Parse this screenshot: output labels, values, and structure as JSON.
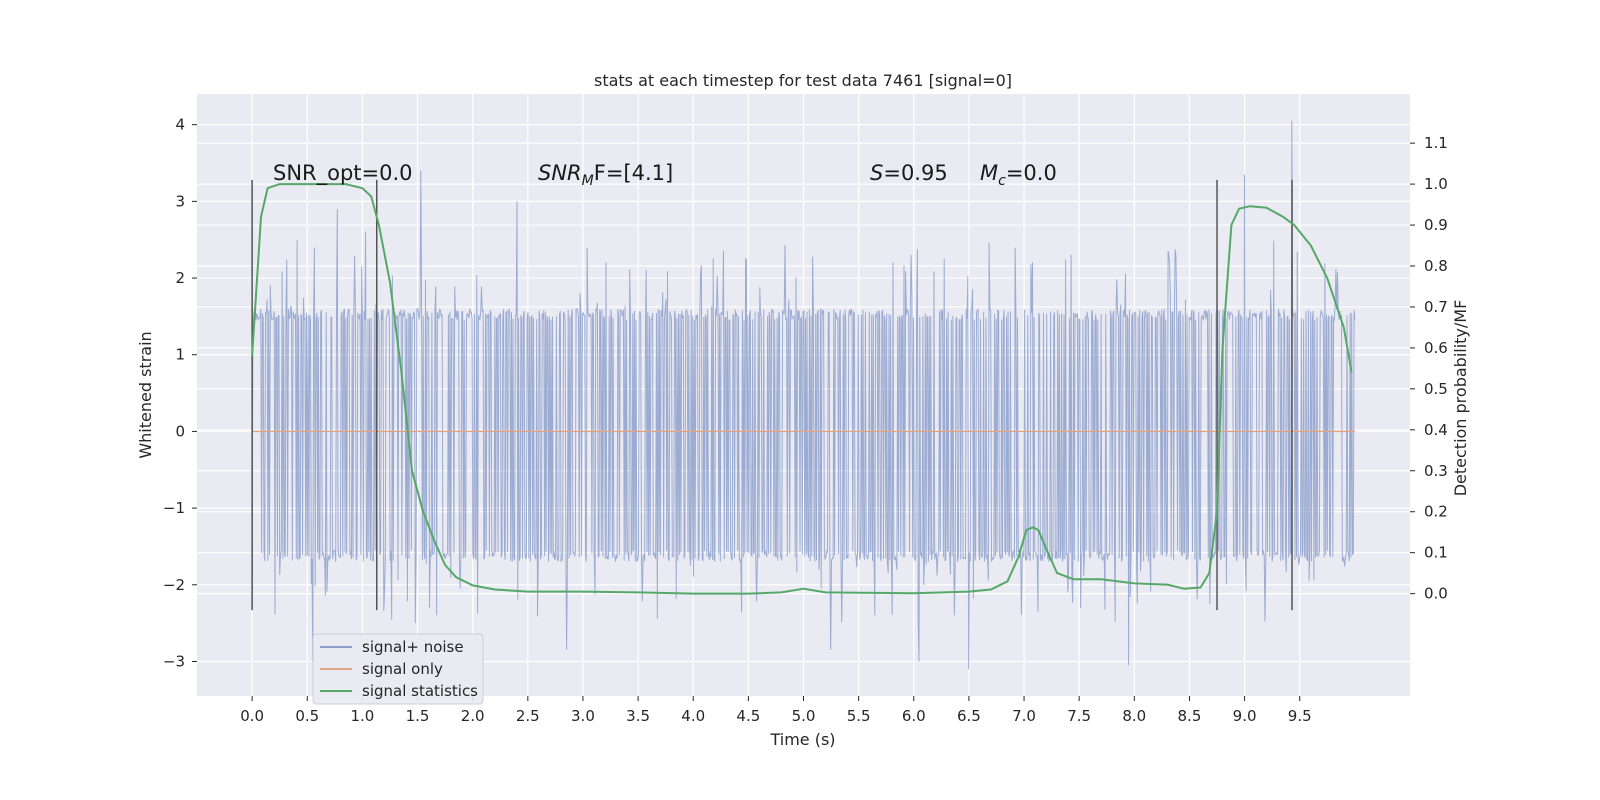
{
  "chart_data": {
    "type": "line",
    "title": "stats at each timestep for test data 7461 [signal=0]",
    "xlabel": "Time (s)",
    "ylabel": "Whitened strain",
    "ylabel_right": "Detection probability/MF",
    "xlim": [
      -0.5,
      10.5
    ],
    "ylim": [
      -3.45,
      4.4
    ],
    "ylim_right": [
      -0.25,
      1.22
    ],
    "x_ticks": [
      0.0,
      0.5,
      1.0,
      1.5,
      2.0,
      2.5,
      3.0,
      3.5,
      4.0,
      4.5,
      5.0,
      5.5,
      6.0,
      6.5,
      7.0,
      7.5,
      8.0,
      8.5,
      9.0,
      9.5
    ],
    "x_tick_labels": [
      "0.0",
      "0.5",
      "1.0",
      "1.5",
      "2.0",
      "2.5",
      "3.0",
      "3.5",
      "4.0",
      "4.5",
      "5.0",
      "5.5",
      "6.0",
      "6.5",
      "7.0",
      "7.5",
      "8.0",
      "8.5",
      "9.0",
      "9.5"
    ],
    "y_ticks": [
      -3,
      -2,
      -1,
      0,
      1,
      2,
      3,
      4
    ],
    "y_tick_labels": [
      "−3",
      "−2",
      "−1",
      "0",
      "1",
      "2",
      "3",
      "4"
    ],
    "y_right_ticks": [
      0.0,
      0.1,
      0.2,
      0.3,
      0.4,
      0.5,
      0.6,
      0.7,
      0.8,
      0.9,
      1.0,
      1.1
    ],
    "y_right_tick_labels": [
      "0.0",
      "0.1",
      "0.2",
      "0.3",
      "0.4",
      "0.5",
      "0.6",
      "0.7",
      "0.8",
      "0.9",
      "1.0",
      "1.1"
    ],
    "annotations": {
      "snr_opt": "SNR_opt=0.0",
      "snr_mf_label": "SNR",
      "snr_mf_sub": "M",
      "snr_mf_tail": "F=[4.1]",
      "s_label": "S",
      "s_value": "=0.95",
      "mc_label": "M",
      "mc_sub": "c",
      "mc_value": "=0.0"
    },
    "legend": {
      "position": "lower-left",
      "entries": [
        "signal+ noise",
        "signal only",
        "signal statistics"
      ]
    },
    "vertical_markers_x": [
      0.0,
      1.13,
      8.75,
      9.43
    ],
    "vertical_markers_range": [
      -2.33,
      3.28
    ],
    "series": [
      {
        "name": "signal+ noise",
        "color": "#8da0cb",
        "t_range": [
          0.0,
          10.0
        ],
        "band_typical": [
          -1.7,
          1.6
        ],
        "notable_spikes": [
          {
            "x": 0.77,
            "y": 2.9
          },
          {
            "x": 1.03,
            "y": 2.6
          },
          {
            "x": 1.53,
            "y": 3.4
          },
          {
            "x": 2.4,
            "y": 3.0
          },
          {
            "x": 2.85,
            "y": -2.85
          },
          {
            "x": 6.05,
            "y": -3.0
          },
          {
            "x": 6.5,
            "y": -3.1
          },
          {
            "x": 7.95,
            "y": -3.05
          },
          {
            "x": 9.0,
            "y": 3.35
          },
          {
            "x": 9.43,
            "y": 4.05
          },
          {
            "x": 0.55,
            "y": -3.0
          },
          {
            "x": 5.25,
            "y": -2.85
          }
        ]
      },
      {
        "name": "signal only",
        "color": "#e1a585",
        "x": [
          0.0,
          10.0
        ],
        "y": [
          0.0,
          0.0
        ]
      },
      {
        "name": "signal statistics",
        "color": "#55a868",
        "axis": "right",
        "x": [
          0.0,
          0.08,
          0.14,
          0.25,
          0.4,
          0.6,
          0.85,
          1.0,
          1.08,
          1.15,
          1.25,
          1.35,
          1.45,
          1.55,
          1.65,
          1.75,
          1.85,
          2.0,
          2.2,
          2.5,
          3.0,
          3.5,
          4.0,
          4.5,
          4.8,
          5.0,
          5.2,
          5.5,
          6.0,
          6.5,
          6.7,
          6.85,
          6.95,
          7.02,
          7.08,
          7.13,
          7.2,
          7.3,
          7.45,
          7.7,
          8.0,
          8.3,
          8.45,
          8.6,
          8.68,
          8.75,
          8.8,
          8.88,
          8.95,
          9.05,
          9.2,
          9.35,
          9.45,
          9.6,
          9.75,
          9.9,
          9.97
        ],
        "y": [
          0.58,
          0.92,
          0.99,
          1.0,
          1.0,
          1.0,
          1.0,
          0.99,
          0.97,
          0.9,
          0.76,
          0.55,
          0.3,
          0.2,
          0.13,
          0.07,
          0.04,
          0.02,
          0.01,
          0.005,
          0.005,
          0.003,
          0.0,
          0.0,
          0.003,
          0.012,
          0.003,
          0.002,
          0.001,
          0.005,
          0.01,
          0.03,
          0.09,
          0.155,
          0.162,
          0.155,
          0.11,
          0.05,
          0.035,
          0.035,
          0.025,
          0.022,
          0.012,
          0.015,
          0.05,
          0.2,
          0.6,
          0.9,
          0.94,
          0.946,
          0.942,
          0.92,
          0.9,
          0.85,
          0.77,
          0.65,
          0.54
        ]
      }
    ]
  }
}
